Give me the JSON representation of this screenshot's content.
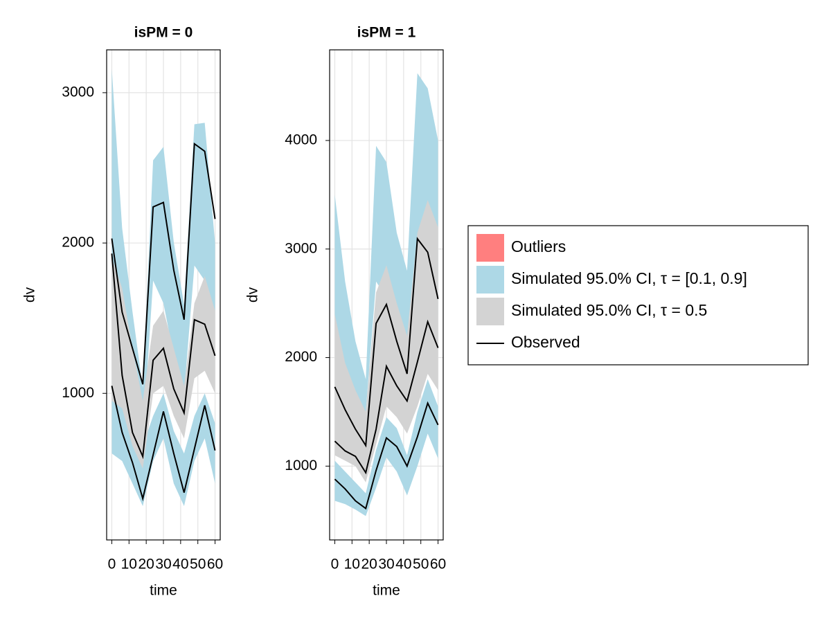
{
  "chart_data": [
    {
      "type": "vpc",
      "title": "isPM = 0",
      "xlabel": "time",
      "ylabel": "dv",
      "x": [
        0,
        6,
        12,
        18,
        24,
        30,
        36,
        42,
        48,
        54,
        60
      ],
      "xlim": [
        -3,
        63
      ],
      "xticks": [
        0,
        10,
        20,
        30,
        40,
        50,
        60
      ],
      "ylim": [
        25,
        3285
      ],
      "yticks": [
        1000,
        2000,
        3000
      ],
      "grid": true,
      "bands": [
        {
          "color": "#add8e6",
          "lower": [
            600,
            550,
            400,
            250,
            550,
            700,
            400,
            250,
            550,
            700,
            400
          ],
          "upper": [
            1100,
            950,
            800,
            650,
            850,
            1000,
            750,
            600,
            850,
            1000,
            800
          ]
        },
        {
          "color": "#add8e6",
          "lower": [
            1700,
            1350,
            1050,
            700,
            1750,
            1600,
            1250,
            1000,
            1850,
            1750,
            1500
          ],
          "upper": [
            3157,
            2100,
            1544,
            1037,
            2550,
            2640,
            2005,
            1590,
            2790,
            2800,
            2000
          ]
        },
        {
          "color": "#d3d3d3",
          "lower": [
            950,
            900,
            650,
            500,
            1000,
            1050,
            850,
            700,
            1100,
            1150,
            1000
          ],
          "upper": [
            1900,
            1700,
            1300,
            950,
            1450,
            1550,
            1300,
            1050,
            1600,
            1780,
            1550
          ]
        }
      ],
      "lines": [
        {
          "color": "#000000",
          "values": [
            1050,
            740,
            540,
            300,
            590,
            880,
            600,
            340,
            630,
            920,
            620
          ]
        },
        {
          "color": "#000000",
          "values": [
            1930,
            1120,
            740,
            580,
            1220,
            1300,
            1030,
            870,
            1490,
            1460,
            1250
          ]
        },
        {
          "color": "#000000",
          "values": [
            2030,
            1540,
            1300,
            1060,
            2240,
            2270,
            1820,
            1490,
            2660,
            2610,
            2160
          ]
        }
      ]
    },
    {
      "type": "vpc",
      "title": "isPM = 1",
      "xlabel": "time",
      "ylabel": "dv",
      "x": [
        0,
        6,
        12,
        18,
        24,
        30,
        36,
        42,
        48,
        54,
        60
      ],
      "xlim": [
        -3,
        63
      ],
      "xticks": [
        0,
        10,
        20,
        30,
        40,
        50,
        60
      ],
      "ylim": [
        320,
        4835
      ],
      "yticks": [
        1000,
        2000,
        3000,
        4000
      ],
      "grid": true,
      "bands": [
        {
          "color": "#add8e6",
          "lower": [
            680,
            650,
            600,
            540,
            800,
            1080,
            950,
            730,
            1000,
            1300,
            1070
          ],
          "upper": [
            1050,
            950,
            850,
            750,
            1150,
            1450,
            1350,
            1100,
            1500,
            1800,
            1550
          ]
        },
        {
          "color": "#add8e6",
          "lower": [
            2200,
            1850,
            1650,
            1500,
            2700,
            2550,
            2200,
            1950,
            3000,
            2750,
            2400
          ],
          "upper": [
            3500,
            2700,
            2150,
            1800,
            3950,
            3800,
            3150,
            2800,
            4620,
            4480,
            4000
          ]
        },
        {
          "color": "#d3d3d3",
          "lower": [
            1100,
            1050,
            1000,
            850,
            1200,
            1550,
            1450,
            1300,
            1550,
            1850,
            1700
          ],
          "upper": [
            2400,
            1950,
            1700,
            1500,
            2600,
            2850,
            2500,
            2200,
            3150,
            3450,
            3200
          ]
        }
      ],
      "lines": [
        {
          "color": "#000000",
          "values": [
            880,
            790,
            680,
            610,
            960,
            1260,
            1180,
            1000,
            1270,
            1580,
            1380
          ]
        },
        {
          "color": "#000000",
          "values": [
            1230,
            1140,
            1090,
            940,
            1340,
            1920,
            1740,
            1600,
            1960,
            2330,
            2090
          ]
        },
        {
          "color": "#000000",
          "values": [
            1730,
            1520,
            1340,
            1190,
            2315,
            2490,
            2150,
            1850,
            3095,
            2970,
            2540
          ]
        }
      ]
    }
  ],
  "legend": {
    "position": "right",
    "entries": [
      {
        "label": "Outliers",
        "color": "#ff7f7f",
        "marker": "patch"
      },
      {
        "label": "Simulated 95.0% CI, τ = [0.1, 0.9]",
        "color": "#add8e6",
        "marker": "patch"
      },
      {
        "label": "Simulated 95.0% CI, τ = 0.5",
        "color": "#d3d3d3",
        "marker": "patch"
      },
      {
        "label": "Observed",
        "color": "#000000",
        "marker": "line"
      }
    ]
  }
}
